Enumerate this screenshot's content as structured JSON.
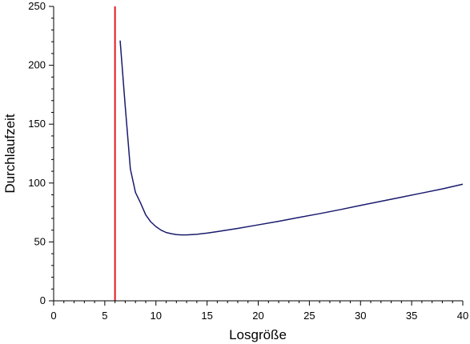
{
  "chart_data": {
    "type": "line",
    "xlabel": "Losgröße",
    "ylabel": "Durchlaufzeit",
    "xlim": [
      0,
      40
    ],
    "ylim": [
      0,
      250
    ],
    "x_ticks": [
      0,
      5,
      10,
      15,
      20,
      25,
      30,
      35,
      40
    ],
    "y_ticks": [
      0,
      50,
      100,
      150,
      200,
      250
    ],
    "grid": false,
    "series": [
      {
        "color": "#1a1a6e",
        "x": [
          6.5,
          7.0,
          7.5,
          8.0,
          8.5,
          9.0,
          9.5,
          10,
          10.5,
          11,
          11.5,
          12,
          12.5,
          13,
          14,
          15,
          16,
          18,
          20,
          22,
          24,
          26,
          28,
          30,
          32,
          34,
          36,
          38,
          40
        ],
        "y": [
          221,
          165,
          112,
          92,
          83,
          73,
          67,
          63,
          60,
          58,
          57,
          56.2,
          56,
          56,
          56.5,
          57.5,
          58.8,
          61.5,
          64.5,
          67.5,
          70.8,
          74,
          77.4,
          81,
          84.5,
          88,
          91.5,
          95,
          99
        ]
      }
    ],
    "reference_lines": [
      {
        "orientation": "vertical",
        "x": 6,
        "color": "#e31a1c"
      }
    ]
  }
}
